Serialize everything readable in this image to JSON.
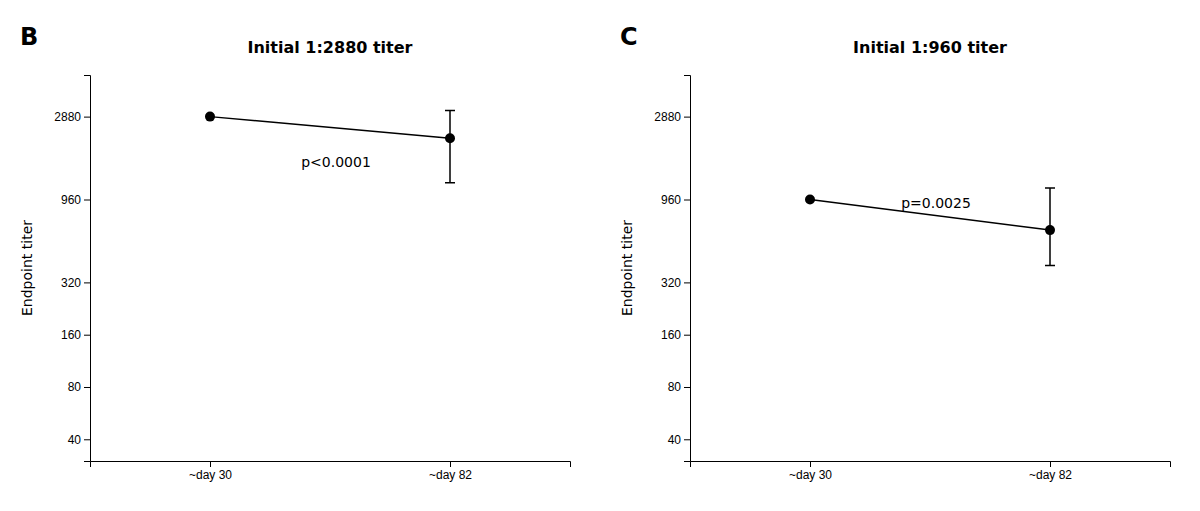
{
  "chart_data": [
    {
      "type": "line",
      "title": "Initial 1:2880 titer",
      "panel_label": "B",
      "categories": [
        "~day 30",
        "~day 82"
      ],
      "values": [
        2880,
        2160
      ],
      "error_upper": [
        null,
        960
      ],
      "error_lower": [
        null,
        960
      ],
      "annotations": [
        {
          "text": "p<0.0001",
          "x": 0.38,
          "y": 1550
        }
      ],
      "ylabel": "Endpoint titer",
      "log": "y",
      "ylim": [
        30,
        5000
      ],
      "yticks": [
        40,
        80,
        160,
        320,
        960,
        2880
      ],
      "grid": false,
      "color": "#000000",
      "marker": "circle"
    },
    {
      "type": "line",
      "title": "Initial 1:960 titer",
      "panel_label": "C",
      "categories": [
        "~day 30",
        "~day 82"
      ],
      "values": [
        960,
        640
      ],
      "error_upper": [
        null,
        480
      ],
      "error_lower": [
        null,
        240
      ],
      "annotations": [
        {
          "text": "p=0.0025",
          "x": 0.38,
          "y": 900
        }
      ],
      "ylabel": "Endpoint titer",
      "log": "y",
      "ylim": [
        30,
        5000
      ],
      "yticks": [
        40,
        80,
        160,
        320,
        960,
        2880
      ],
      "grid": false,
      "color": "#000000",
      "marker": "circle"
    }
  ]
}
